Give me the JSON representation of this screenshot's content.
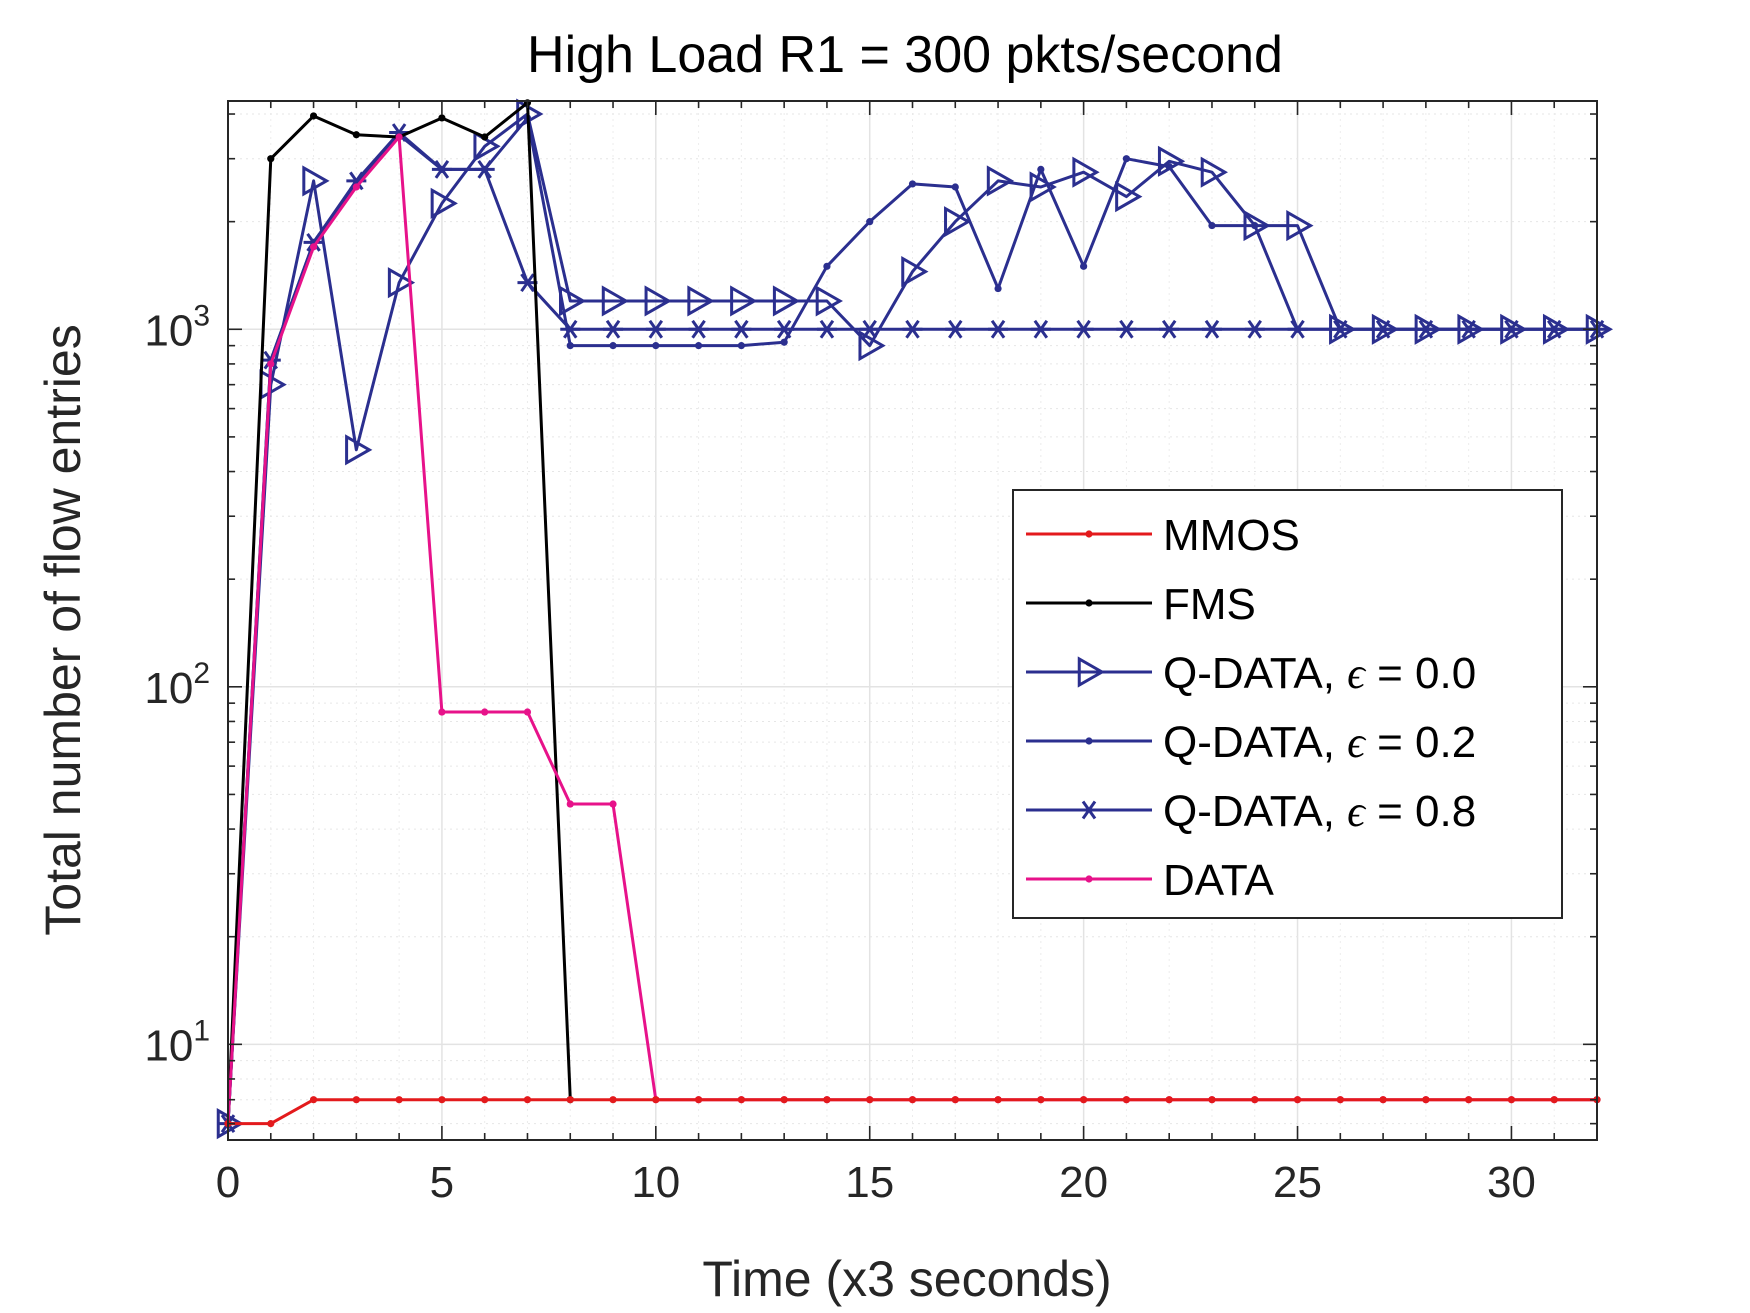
{
  "chart_data": {
    "type": "line",
    "title": "High Load R1 = 300 pkts/second",
    "xlabel": "Time (x3 seconds)",
    "ylabel": "Total number of flow entries",
    "xlim": [
      0,
      32
    ],
    "ylim": [
      5.4,
      4350
    ],
    "yscale": "log",
    "grid": true,
    "legend_position": "center-right",
    "x_ticks": [
      0,
      5,
      10,
      15,
      20,
      25,
      30
    ],
    "y_ticks": [
      {
        "value": 10,
        "base": "10",
        "exp": "1"
      },
      {
        "value": 100,
        "base": "10",
        "exp": "2"
      },
      {
        "value": 1000,
        "base": "10",
        "exp": "3"
      }
    ],
    "series": [
      {
        "name": "MMOS",
        "color": "#e31a1c",
        "marker": "dot",
        "x": [
          0,
          1,
          2,
          3,
          4,
          5,
          6,
          7,
          8,
          9,
          10,
          11,
          12,
          13,
          14,
          15,
          16,
          17,
          18,
          19,
          20,
          21,
          22,
          23,
          24,
          25,
          26,
          27,
          28,
          29,
          30,
          31,
          32
        ],
        "y": [
          6,
          6,
          7,
          7,
          7,
          7,
          7,
          7,
          7,
          7,
          7,
          7,
          7,
          7,
          7,
          7,
          7,
          7,
          7,
          7,
          7,
          7,
          7,
          7,
          7,
          7,
          7,
          7,
          7,
          7,
          7,
          7,
          7
        ]
      },
      {
        "name": "FMS",
        "color": "#000000",
        "marker": "dot",
        "x": [
          0,
          1,
          2,
          3,
          4,
          5,
          6,
          7,
          8
        ],
        "y": [
          6,
          3000,
          3950,
          3500,
          3450,
          3900,
          3450,
          4300,
          7
        ]
      },
      {
        "name": "Q-DATA, ε = 0.0",
        "name_prefix": "Q-DATA, ",
        "name_epsilon": "ϵ",
        "name_suffix": " = 0.0",
        "color": "#2b2f8f",
        "marker": "triangle-right",
        "x": [
          0,
          1,
          2,
          3,
          4,
          5,
          6,
          7,
          8,
          9,
          10,
          11,
          12,
          13,
          14,
          15,
          16,
          17,
          18,
          19,
          20,
          21,
          22,
          23,
          24,
          25,
          26,
          27,
          28,
          29,
          30,
          31,
          32
        ],
        "y": [
          6,
          700,
          2600,
          460,
          1350,
          2250,
          3250,
          4000,
          1200,
          1200,
          1200,
          1200,
          1200,
          1200,
          1200,
          900,
          1450,
          2000,
          2600,
          2500,
          2750,
          2350,
          2950,
          2750,
          1950,
          1950,
          1000,
          1000,
          1000,
          1000,
          1000,
          1000,
          1000
        ]
      },
      {
        "name": "Q-DATA, ε = 0.2",
        "name_prefix": "Q-DATA, ",
        "name_epsilon": "ϵ",
        "name_suffix": " = 0.2",
        "color": "#2b2f8f",
        "marker": "dot",
        "x": [
          0,
          1,
          2,
          3,
          4,
          5,
          6,
          7,
          8,
          9,
          10,
          11,
          12,
          13,
          14,
          15,
          16,
          17,
          18,
          19,
          20,
          21,
          22,
          23,
          24,
          25,
          26,
          27,
          28,
          29,
          30,
          31,
          32
        ],
        "y": [
          6,
          820,
          1750,
          2550,
          3500,
          2800,
          2800,
          3900,
          900,
          900,
          900,
          900,
          900,
          920,
          1500,
          2000,
          2550,
          2500,
          1300,
          2800,
          1500,
          3000,
          2850,
          1950,
          1950,
          1000,
          1000,
          1000,
          1000,
          1000,
          1000,
          1000,
          1000
        ]
      },
      {
        "name": "Q-DATA, ε = 0.8",
        "name_prefix": "Q-DATA, ",
        "name_epsilon": "ϵ",
        "name_suffix": " = 0.8",
        "color": "#2b2f8f",
        "marker": "asterisk",
        "x": [
          0,
          1,
          2,
          3,
          4,
          5,
          6,
          7,
          8,
          9,
          10,
          11,
          12,
          13,
          14,
          15,
          16,
          17,
          18,
          19,
          20,
          21,
          22,
          23,
          24,
          25,
          26,
          27,
          28,
          29,
          30,
          31,
          32
        ],
        "y": [
          6,
          820,
          1750,
          2600,
          3550,
          2800,
          2800,
          1350,
          1000,
          1000,
          1000,
          1000,
          1000,
          1000,
          1000,
          1000,
          1000,
          1000,
          1000,
          1000,
          1000,
          1000,
          1000,
          1000,
          1000,
          1000,
          1000,
          1000,
          1000,
          1000,
          1000,
          1000,
          1000
        ]
      },
      {
        "name": "DATA",
        "color": "#e7128a",
        "marker": "dot",
        "x": [
          0,
          1,
          2,
          3,
          4,
          5,
          6,
          7,
          8,
          9,
          10,
          11,
          12,
          13,
          14,
          15,
          16,
          17,
          18,
          19,
          20,
          21,
          22,
          23,
          24,
          25,
          26,
          27,
          28,
          29,
          30,
          31,
          32
        ],
        "y": [
          6,
          800,
          1700,
          2500,
          3450,
          85,
          85,
          85,
          47,
          47,
          7,
          7,
          7,
          7,
          7,
          7,
          7,
          7,
          7,
          7,
          7,
          7,
          7,
          7,
          7,
          7,
          7,
          7,
          7,
          7,
          7,
          7,
          7
        ]
      }
    ]
  }
}
